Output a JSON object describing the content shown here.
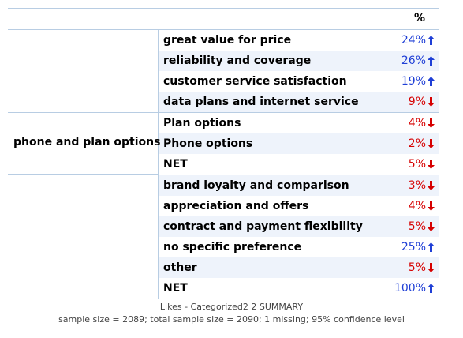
{
  "header": {
    "percent_label": "%"
  },
  "row_group": {
    "label": "phone and plan options"
  },
  "rows": [
    {
      "label": "great value for price",
      "value": "24%",
      "direction": "up"
    },
    {
      "label": "reliability and coverage",
      "value": "26%",
      "direction": "up"
    },
    {
      "label": "customer service satisfaction",
      "value": "19%",
      "direction": "up"
    },
    {
      "label": "data plans and internet service",
      "value": "9%",
      "direction": "down"
    },
    {
      "label": "Plan options",
      "value": "4%",
      "direction": "down"
    },
    {
      "label": "Phone options",
      "value": "2%",
      "direction": "down"
    },
    {
      "label": "NET",
      "value": "5%",
      "direction": "down"
    },
    {
      "label": "brand loyalty and comparison",
      "value": "3%",
      "direction": "down"
    },
    {
      "label": "appreciation and offers",
      "value": "4%",
      "direction": "down"
    },
    {
      "label": "contract and payment flexibility",
      "value": "5%",
      "direction": "down"
    },
    {
      "label": "no specific preference",
      "value": "25%",
      "direction": "up"
    },
    {
      "label": "other",
      "value": "5%",
      "direction": "down"
    },
    {
      "label": "NET",
      "value": "100%",
      "direction": "up"
    }
  ],
  "colors": {
    "up": "#1f3fd6",
    "down": "#d60000",
    "border": "#b8cde3",
    "alt_row": "#eef3fb"
  },
  "footer": {
    "title": "Likes - Categorized2 2 SUMMARY",
    "stats": "sample size = 2089; total sample size = 2090; 1 missing; 95% confidence level"
  }
}
